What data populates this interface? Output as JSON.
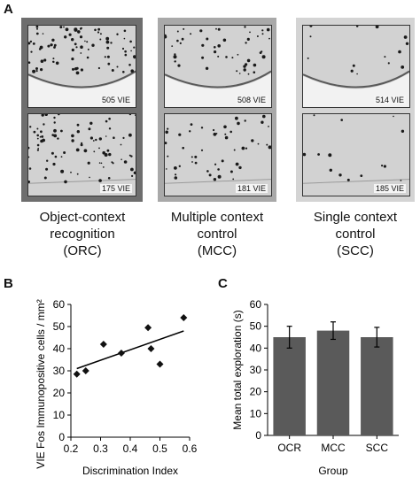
{
  "panel_a": {
    "letter": "A",
    "groups": [
      {
        "key": "orc",
        "frame_color": "#6e6e6e",
        "density": 0.95,
        "images": [
          {
            "label": "505 VIE"
          },
          {
            "label": "175 VIE"
          }
        ],
        "caption": [
          "Object-context",
          "recognition",
          "(ORC)"
        ]
      },
      {
        "key": "mcc",
        "frame_color": "#a9a9a9",
        "density": 0.55,
        "images": [
          {
            "label": "508 VIE"
          },
          {
            "label": "181 VIE"
          }
        ],
        "caption": [
          "Multiple context",
          "control",
          "(MCC)"
        ]
      },
      {
        "key": "scc",
        "frame_color": "#d4d4d4",
        "density": 0.15,
        "images": [
          {
            "label": "514 VIE"
          },
          {
            "label": "185 VIE"
          }
        ],
        "caption": [
          "Single context",
          "control",
          "(SCC)"
        ]
      }
    ]
  },
  "panel_b": {
    "letter": "B"
  },
  "panel_c": {
    "letter": "C"
  },
  "chart_data": [
    {
      "type": "scatter",
      "xlabel": "Discrimination Index",
      "ylabel": "VIE Fos Immunopositive cells / mm²",
      "xlim": [
        0.2,
        0.6
      ],
      "ylim": [
        0,
        60
      ],
      "xticks": [
        "0.2",
        "0.3",
        "0.4",
        "0.5",
        "0.6"
      ],
      "yticks": [
        "0",
        "10",
        "20",
        "30",
        "40",
        "50",
        "60"
      ],
      "points": [
        [
          0.22,
          28.5
        ],
        [
          0.25,
          30
        ],
        [
          0.31,
          42
        ],
        [
          0.37,
          38
        ],
        [
          0.46,
          49.5
        ],
        [
          0.47,
          40
        ],
        [
          0.5,
          33
        ],
        [
          0.58,
          54
        ]
      ],
      "trendline": [
        [
          0.22,
          31
        ],
        [
          0.58,
          48
        ]
      ],
      "grid": false,
      "marker": "diamond"
    },
    {
      "type": "bar",
      "categories": [
        "OCR",
        "MCC",
        "SCC"
      ],
      "values": [
        45,
        48,
        45
      ],
      "errors": [
        5,
        4,
        4.5
      ],
      "xlabel": "Group",
      "ylabel": "Mean total exploration (s)",
      "ylim": [
        0,
        60
      ],
      "yticks": [
        "0",
        "10",
        "20",
        "30",
        "40",
        "50",
        "60"
      ],
      "bar_color": "#5a5a5a",
      "grid": false
    }
  ]
}
